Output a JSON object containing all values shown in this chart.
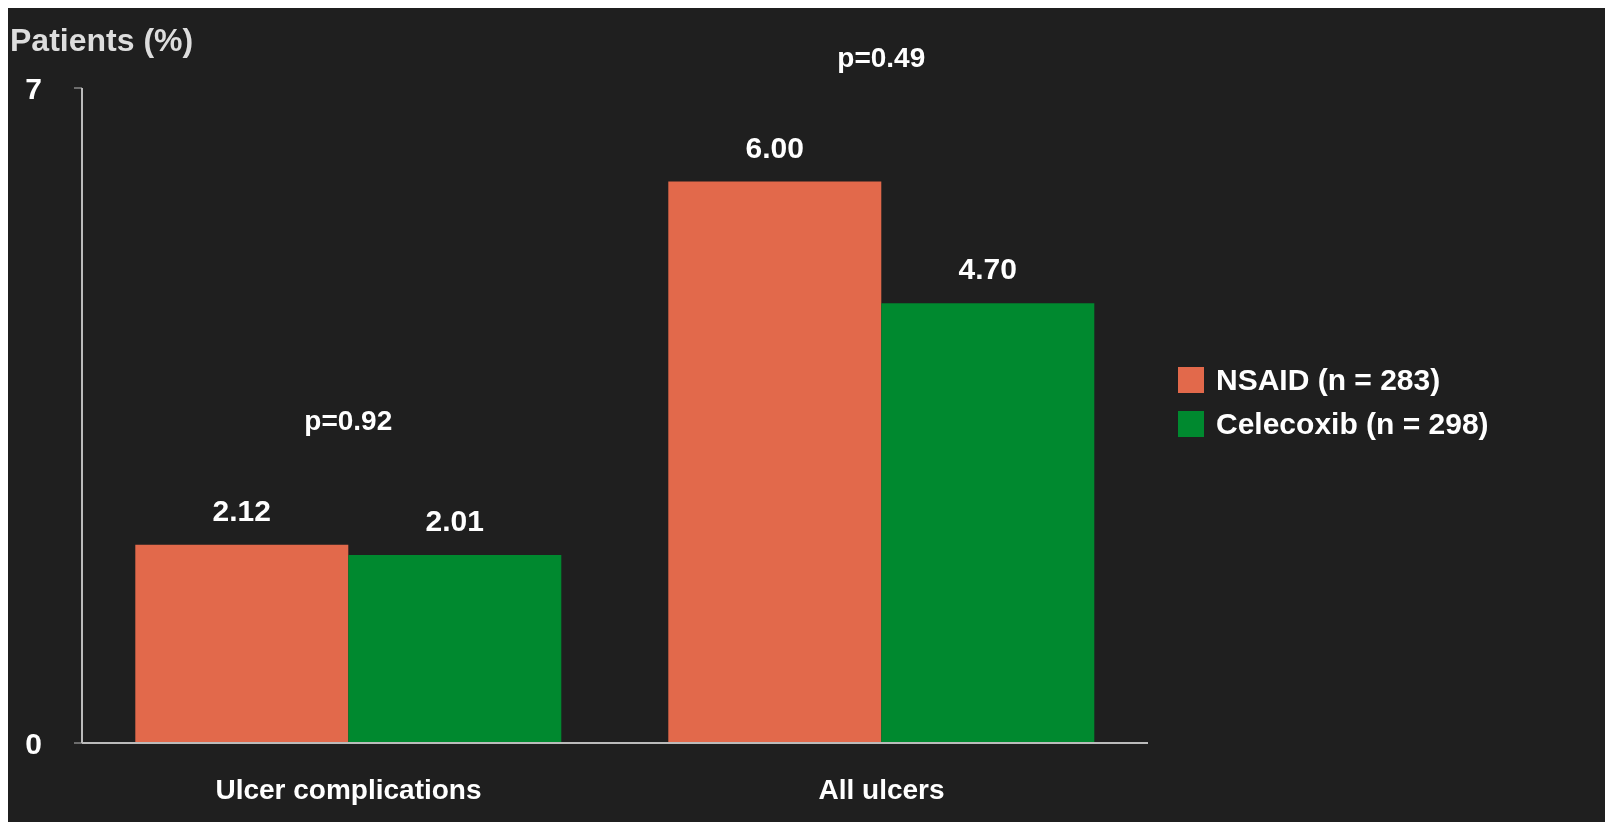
{
  "chart_data": {
    "type": "bar",
    "ylabel": "Patients (%)",
    "categories": [
      "Ulcer complications",
      "All ulcers"
    ],
    "series": [
      {
        "name": "NSAID (n = 283)",
        "color": "#e2694b",
        "values": [
          2.12,
          6.0
        ],
        "value_labels": [
          "2.12",
          "6.00"
        ]
      },
      {
        "name": "Celecoxib (n = 298)",
        "color": "#00892f",
        "values": [
          2.01,
          4.7
        ],
        "value_labels": [
          "2.01",
          "4.70"
        ]
      }
    ],
    "ylim": [
      0,
      7
    ],
    "yticks": [
      0,
      7
    ],
    "legend": "right",
    "annotations": [
      "p=0.92",
      "p=0.49"
    ]
  }
}
